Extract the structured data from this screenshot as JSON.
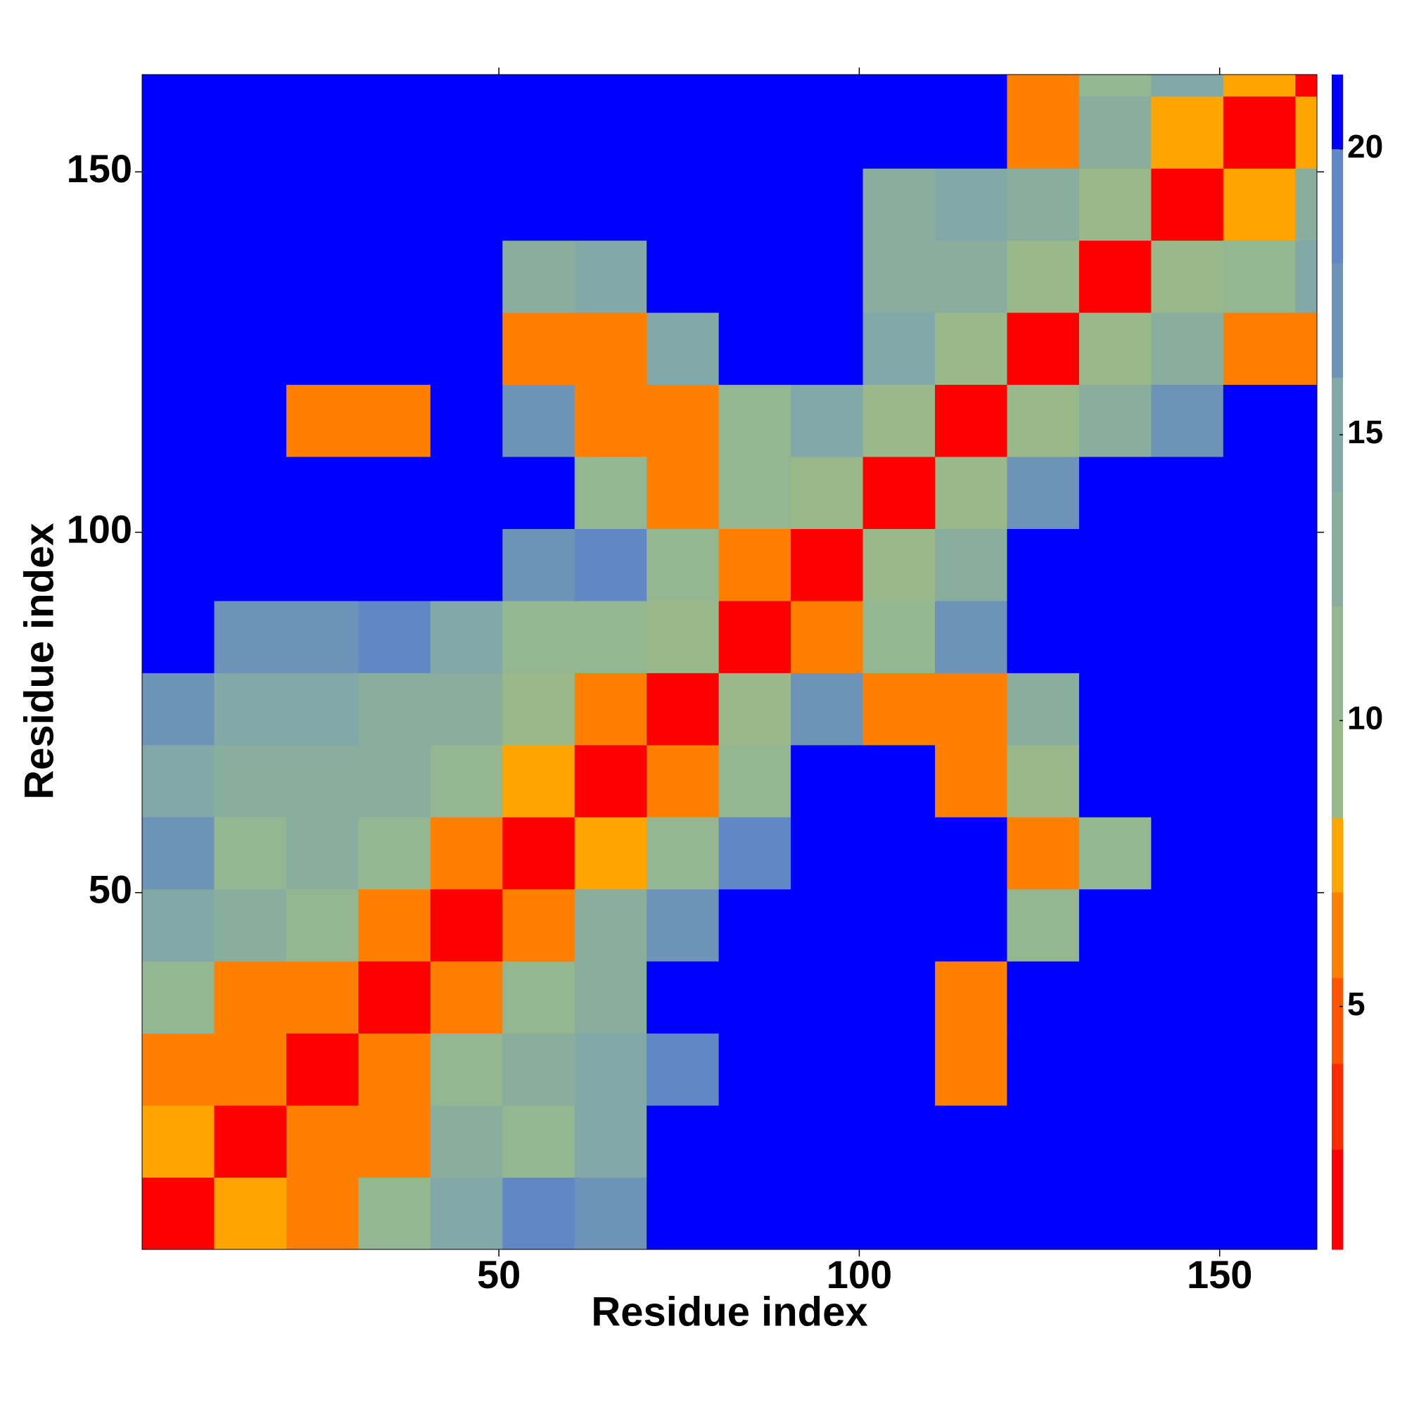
{
  "chart_data": {
    "type": "heatmap",
    "xlabel": "Residue index",
    "ylabel": "Residue index",
    "x": [
      5.5,
      15.5,
      25.5,
      35.5,
      45.5,
      55.5,
      65.5,
      75.5,
      85.5,
      95.5,
      105.5,
      115.5,
      125.5,
      135.5,
      145.5,
      155.5,
      165.5
    ],
    "y": [
      5.5,
      15.5,
      25.5,
      35.5,
      45.5,
      55.5,
      65.5,
      75.5,
      85.5,
      95.5,
      105.5,
      115.5,
      125.5,
      135.5,
      145.5,
      155.5,
      165.5
    ],
    "z": [
      [
        1.8,
        8,
        6,
        11,
        16,
        19,
        17,
        21,
        21,
        21,
        21,
        21,
        21,
        21,
        21,
        21,
        21
      ],
      [
        8,
        1.8,
        6,
        7,
        13,
        12,
        16,
        21,
        21,
        21,
        21,
        21,
        21,
        21,
        21,
        21,
        21
      ],
      [
        6,
        6,
        1.8,
        6,
        11,
        13,
        15,
        19,
        21,
        21,
        21,
        6,
        21,
        21,
        21,
        21,
        21
      ],
      [
        11,
        7,
        6,
        1.8,
        7,
        12,
        14,
        21,
        21,
        21,
        21,
        6,
        21,
        21,
        21,
        21,
        21
      ],
      [
        16,
        13,
        11,
        7,
        1.8,
        6,
        13,
        17,
        21,
        21,
        21,
        21,
        12,
        21,
        21,
        21,
        21
      ],
      [
        17,
        12,
        13,
        12,
        6,
        1.8,
        8,
        12,
        19,
        21,
        21,
        21,
        6,
        12,
        21,
        21,
        21
      ],
      [
        16,
        14,
        14,
        13,
        12,
        8,
        1.8,
        6,
        12,
        21,
        21,
        6,
        10,
        21,
        21,
        21,
        21
      ],
      [
        17,
        15,
        16,
        14,
        14,
        10,
        6,
        1.8,
        9,
        17,
        6,
        7,
        14,
        21,
        21,
        21,
        21
      ],
      [
        21,
        17,
        18,
        19,
        16,
        12,
        12,
        9,
        1.8,
        6,
        12,
        17,
        21,
        21,
        21,
        21,
        21
      ],
      [
        21,
        21,
        21,
        21,
        21,
        17,
        19,
        12,
        6,
        1.8,
        9,
        13,
        21,
        21,
        21,
        21,
        21
      ],
      [
        21,
        21,
        21,
        21,
        21,
        21,
        12,
        6,
        12,
        9,
        1.8,
        9,
        17,
        21,
        21,
        21,
        21
      ],
      [
        21,
        21,
        6,
        6,
        21,
        17,
        6,
        6,
        12,
        16,
        9,
        1.8,
        9,
        14,
        17,
        21,
        21
      ],
      [
        21,
        21,
        21,
        21,
        21,
        6,
        7,
        15,
        21,
        21,
        16,
        9,
        1.8,
        9,
        13,
        7,
        7
      ],
      [
        21,
        21,
        21,
        21,
        21,
        13,
        16,
        21,
        21,
        21,
        13,
        13,
        9,
        1.8,
        9,
        12,
        16
      ],
      [
        21,
        21,
        21,
        21,
        21,
        21,
        21,
        21,
        21,
        21,
        14,
        16,
        14,
        9,
        1.8,
        8,
        14
      ],
      [
        21,
        21,
        21,
        21,
        21,
        21,
        21,
        21,
        21,
        21,
        21,
        21,
        6,
        14,
        8,
        1.8,
        8
      ],
      [
        21,
        21,
        21,
        21,
        21,
        21,
        21,
        21,
        21,
        21,
        21,
        21,
        6,
        12,
        16,
        8,
        1.8
      ]
    ],
    "xlim": [
      0.5,
      163.5
    ],
    "ylim": [
      0.5,
      163.5
    ],
    "xticks": [
      50,
      100,
      150
    ],
    "yticks": [
      50,
      100,
      150
    ],
    "colorbar": {
      "levels": [
        0.75,
        2.5,
        4,
        5.5,
        7,
        8.3,
        10,
        12,
        14,
        16,
        18,
        20,
        21.3
      ],
      "colors": [
        "#ff0000",
        "#ff2a00",
        "#ff5500",
        "#ff8000",
        "#ffa500",
        "#9ab98a",
        "#94b792",
        "#8aae9e",
        "#82a8a8",
        "#6d93b8",
        "#5f88c5",
        "#0000ff"
      ],
      "ticks": [
        5,
        10,
        15,
        20
      ]
    }
  }
}
